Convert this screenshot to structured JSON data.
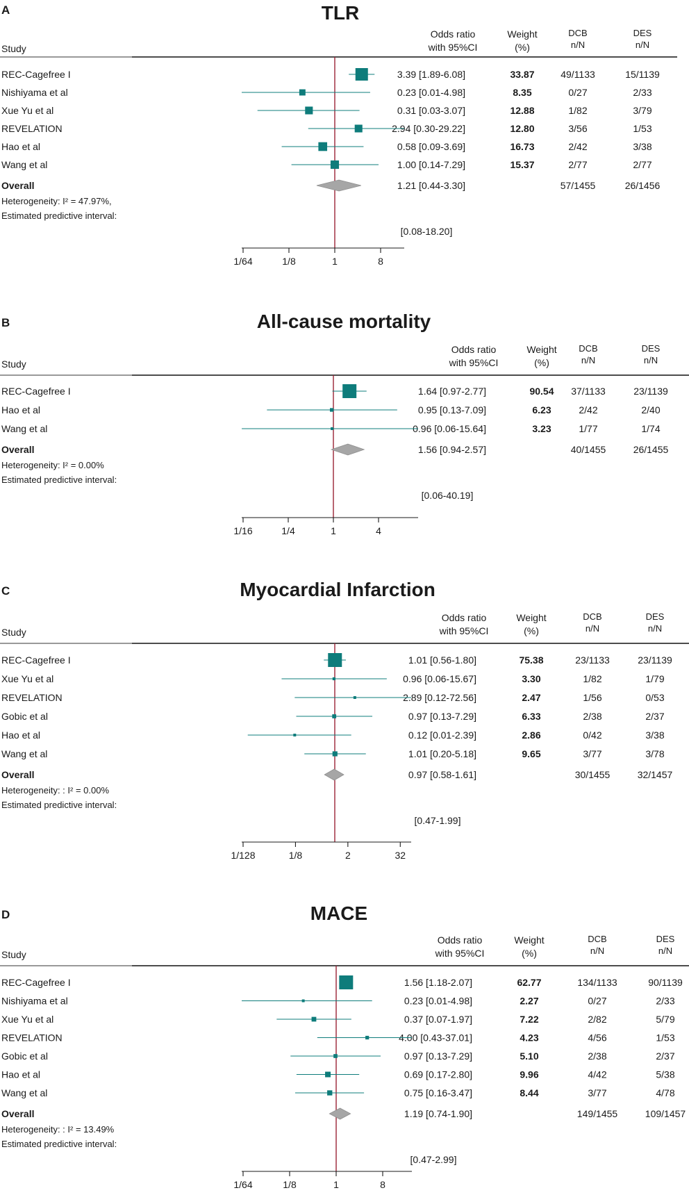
{
  "headers": {
    "study": "Study",
    "or_line1": "Odds ratio",
    "or_line2": "with 95%CI",
    "weight_line1": "Weight",
    "weight_line2": "(%)",
    "dcb_line1": "DCB",
    "dcb_line2": "n/N",
    "des_line1": "DES",
    "des_line2": "n/N"
  },
  "colors": {
    "square": "#0e7c7b",
    "diamond": "#a6a6a6",
    "null_line": "#9b2335",
    "axis": "#1a1a1a"
  },
  "chart_data": [
    {
      "type": "forest",
      "panel_label": "A",
      "title": "TLR",
      "scale": "log2",
      "xlim": [
        0.015625,
        20
      ],
      "ticks": [
        {
          "value": 0.015625,
          "label": "1/64"
        },
        {
          "value": 0.125,
          "label": "1/8"
        },
        {
          "value": 1,
          "label": "1"
        },
        {
          "value": 8,
          "label": "8"
        }
      ],
      "studies": [
        {
          "name": "REC-Cagefree I",
          "or": 3.39,
          "lo": 1.89,
          "hi": 6.08,
          "or_text": "3.39 [1.89-6.08]",
          "weight": "33.87",
          "dcb": "49/1133",
          "des": "15/1139"
        },
        {
          "name": "Nishiyama et al",
          "or": 0.23,
          "lo": 0.01,
          "hi": 4.98,
          "or_text": "0.23 [0.01-4.98]",
          "weight": "8.35",
          "dcb": "0/27",
          "des": "2/33"
        },
        {
          "name": "Xue Yu et al",
          "or": 0.31,
          "lo": 0.03,
          "hi": 3.07,
          "or_text": "0.31 [0.03-3.07]",
          "weight": "12.88",
          "dcb": "1/82",
          "des": "3/79"
        },
        {
          "name": "REVELATION",
          "or": 2.94,
          "lo": 0.3,
          "hi": 29.22,
          "or_text": "2.94 [0.30-29.22]",
          "weight": "12.80",
          "dcb": "3/56",
          "des": "1/53"
        },
        {
          "name": "Hao et al",
          "or": 0.58,
          "lo": 0.09,
          "hi": 3.69,
          "or_text": "0.58 [0.09-3.69]",
          "weight": "16.73",
          "dcb": "2/42",
          "des": "3/38"
        },
        {
          "name": "Wang et al",
          "or": 1.0,
          "lo": 0.14,
          "hi": 7.29,
          "or_text": "1.00 [0.14-7.29]",
          "weight": "15.37",
          "dcb": "2/77",
          "des": "2/77"
        }
      ],
      "overall": {
        "name": "Overall",
        "or": 1.21,
        "lo": 0.44,
        "hi": 3.3,
        "or_text": "1.21 [0.44-3.30]",
        "dcb": "57/1455",
        "des": "26/1456"
      },
      "heterogeneity": "Heterogeneity: I² = 47.97%,",
      "predictive_label": "Estimated predictive interval:",
      "predictive_text": "[0.08-18.20]"
    },
    {
      "type": "forest",
      "panel_label": "B",
      "title": "All-cause mortality",
      "scale": "log2",
      "xlim": [
        0.0625,
        20
      ],
      "ticks": [
        {
          "value": 0.0625,
          "label": "1/16"
        },
        {
          "value": 0.25,
          "label": "1/4"
        },
        {
          "value": 1,
          "label": "1"
        },
        {
          "value": 4,
          "label": "4"
        }
      ],
      "studies": [
        {
          "name": "REC-Cagefree I",
          "or": 1.64,
          "lo": 0.97,
          "hi": 2.77,
          "or_text": "1.64 [0.97-2.77]",
          "weight": "90.54",
          "dcb": "37/1133",
          "des": "23/1139"
        },
        {
          "name": "Hao et al",
          "or": 0.95,
          "lo": 0.13,
          "hi": 7.09,
          "or_text": "0.95 [0.13-7.09]",
          "weight": "6.23",
          "dcb": "2/42",
          "des": "2/40"
        },
        {
          "name": "Wang et al",
          "or": 0.96,
          "lo": 0.06,
          "hi": 15.64,
          "or_text": "0.96 [0.06-15.64]",
          "weight": "3.23",
          "dcb": "1/77",
          "des": "1/74"
        }
      ],
      "overall": {
        "name": "Overall",
        "or": 1.56,
        "lo": 0.94,
        "hi": 2.57,
        "or_text": "1.56 [0.94-2.57]",
        "dcb": "40/1455",
        "des": "26/1455"
      },
      "heterogeneity": "Heterogeneity: I² = 0.00%",
      "predictive_label": "Estimated predictive interval:",
      "predictive_text": "[0.06-40.19]"
    },
    {
      "type": "forest",
      "panel_label": "C",
      "title": "Myocardial Infarction",
      "scale": "log2",
      "xlim": [
        0.0078125,
        80
      ],
      "ticks": [
        {
          "value": 0.0078125,
          "label": "1/128"
        },
        {
          "value": 0.125,
          "label": "1/8"
        },
        {
          "value": 2,
          "label": "2"
        },
        {
          "value": 32,
          "label": "32"
        }
      ],
      "studies": [
        {
          "name": "REC-Cagefree I",
          "or": 1.01,
          "lo": 0.56,
          "hi": 1.8,
          "or_text": "1.01 [0.56-1.80]",
          "weight": "75.38",
          "dcb": "23/1133",
          "des": "23/1139"
        },
        {
          "name": "Xue Yu et al",
          "or": 0.96,
          "lo": 0.06,
          "hi": 15.67,
          "or_text": "0.96 [0.06-15.67]",
          "weight": "3.30",
          "dcb": "1/82",
          "des": "1/79"
        },
        {
          "name": "REVELATION",
          "or": 2.89,
          "lo": 0.12,
          "hi": 72.56,
          "or_text": "2.89 [0.12-72.56]",
          "weight": "2.47",
          "dcb": "1/56",
          "des": "0/53"
        },
        {
          "name": "Gobic et al",
          "or": 0.97,
          "lo": 0.13,
          "hi": 7.29,
          "or_text": "0.97 [0.13-7.29]",
          "weight": "6.33",
          "dcb": "2/38",
          "des": "2/37"
        },
        {
          "name": "Hao et al",
          "or": 0.12,
          "lo": 0.01,
          "hi": 2.39,
          "or_text": "0.12 [0.01-2.39]",
          "weight": "2.86",
          "dcb": "0/42",
          "des": "3/38"
        },
        {
          "name": "Wang et al",
          "or": 1.01,
          "lo": 0.2,
          "hi": 5.18,
          "or_text": "1.01 [0.20-5.18]",
          "weight": "9.65",
          "dcb": "3/77",
          "des": "3/78"
        }
      ],
      "overall": {
        "name": "Overall",
        "or": 0.97,
        "lo": 0.58,
        "hi": 1.61,
        "or_text": "0.97 [0.58-1.61]",
        "dcb": "30/1455",
        "des": "32/1457"
      },
      "heterogeneity": "Heterogeneity: : I² = 0.00%",
      "predictive_label": "Estimated predictive interval:",
      "predictive_text": "[0.47-1.99]"
    },
    {
      "type": "forest",
      "panel_label": "D",
      "title": "MACE",
      "scale": "log2",
      "xlim": [
        0.015625,
        40
      ],
      "ticks": [
        {
          "value": 0.015625,
          "label": "1/64"
        },
        {
          "value": 0.125,
          "label": "1/8"
        },
        {
          "value": 1,
          "label": "1"
        },
        {
          "value": 8,
          "label": "8"
        }
      ],
      "studies": [
        {
          "name": "REC-Cagefree I",
          "or": 1.56,
          "lo": 1.18,
          "hi": 2.07,
          "or_text": "1.56 [1.18-2.07]",
          "weight": "62.77",
          "dcb": "134/1133",
          "des": "90/1139"
        },
        {
          "name": "Nishiyama et al",
          "or": 0.23,
          "lo": 0.01,
          "hi": 4.98,
          "or_text": "0.23 [0.01-4.98]",
          "weight": "2.27",
          "dcb": "0/27",
          "des": "2/33"
        },
        {
          "name": "Xue Yu et al",
          "or": 0.37,
          "lo": 0.07,
          "hi": 1.97,
          "or_text": "0.37 [0.07-1.97]",
          "weight": "7.22",
          "dcb": "2/82",
          "des": "5/79"
        },
        {
          "name": "REVELATION",
          "or": 4.0,
          "lo": 0.43,
          "hi": 37.01,
          "or_text": "4.00 [0.43-37.01]",
          "weight": "4.23",
          "dcb": "4/56",
          "des": "1/53"
        },
        {
          "name": "Gobic et al",
          "or": 0.97,
          "lo": 0.13,
          "hi": 7.29,
          "or_text": "0.97 [0.13-7.29]",
          "weight": "5.10",
          "dcb": "2/38",
          "des": "2/37"
        },
        {
          "name": "Hao et al",
          "or": 0.69,
          "lo": 0.17,
          "hi": 2.8,
          "or_text": "0.69 [0.17-2.80]",
          "weight": "9.96",
          "dcb": "4/42",
          "des": "5/38"
        },
        {
          "name": "Wang et al",
          "or": 0.75,
          "lo": 0.16,
          "hi": 3.47,
          "or_text": "0.75 [0.16-3.47]",
          "weight": "8.44",
          "dcb": "3/77",
          "des": "4/78"
        }
      ],
      "overall": {
        "name": "Overall",
        "or": 1.19,
        "lo": 0.74,
        "hi": 1.9,
        "or_text": "1.19 [0.74-1.90]",
        "dcb": "149/1455",
        "des": "109/1457"
      },
      "heterogeneity": "Heterogeneity: : I² = 13.49%",
      "predictive_label": "Estimated predictive interval:",
      "predictive_text": "[0.47-2.99]"
    }
  ]
}
